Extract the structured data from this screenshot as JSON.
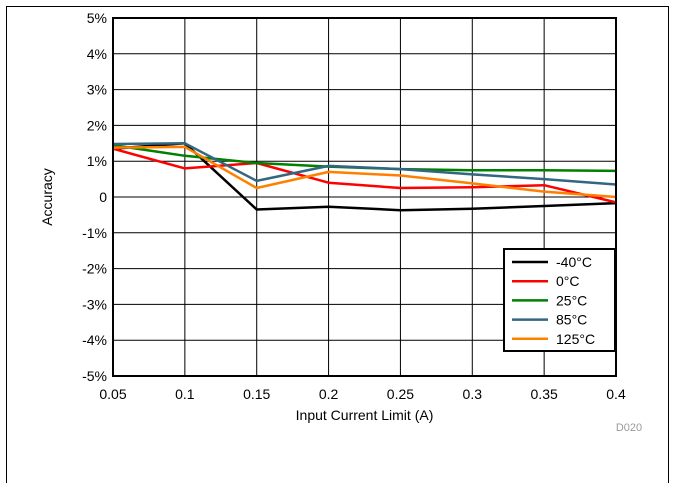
{
  "chart_data": {
    "type": "line",
    "xlabel": "Input Current Limit (A)",
    "ylabel": "Accuracy",
    "xlim": [
      0.05,
      0.4
    ],
    "ylim": [
      -5,
      5
    ],
    "x": [
      0.05,
      0.1,
      0.15,
      0.2,
      0.25,
      0.3,
      0.35,
      0.4
    ],
    "x_tick_labels": [
      "0.05",
      "0.1",
      "0.15",
      "0.2",
      "0.25",
      "0.3",
      "0.35",
      "0.4"
    ],
    "y_ticks": [
      5,
      4,
      3,
      2,
      1,
      0,
      -1,
      -2,
      -3,
      -4,
      -5
    ],
    "y_tick_labels": [
      "5%",
      "4%",
      "3%",
      "2%",
      "1%",
      "0",
      "-1%",
      "-2%",
      "-3%",
      "-4%",
      "-5%"
    ],
    "grid": true,
    "legend_position": "bottom-right",
    "watermark": "D020",
    "series": [
      {
        "name": "-40°C",
        "color": "#000000",
        "values": [
          1.35,
          1.5,
          -0.35,
          -0.27,
          -0.37,
          -0.33,
          -0.25,
          -0.17
        ]
      },
      {
        "name": "0°C",
        "color": "#ff0000",
        "values": [
          1.35,
          0.8,
          0.95,
          0.4,
          0.25,
          0.27,
          0.33,
          -0.15
        ]
      },
      {
        "name": "25°C",
        "color": "#008000",
        "values": [
          1.45,
          1.15,
          0.95,
          0.85,
          0.78,
          0.75,
          0.75,
          0.73
        ]
      },
      {
        "name": "85°C",
        "color": "#336680",
        "values": [
          1.48,
          1.5,
          0.45,
          0.87,
          0.78,
          0.63,
          0.5,
          0.35
        ]
      },
      {
        "name": "125°C",
        "color": "#ff8000",
        "values": [
          1.38,
          1.4,
          0.25,
          0.7,
          0.6,
          0.38,
          0.15,
          0.0
        ]
      }
    ]
  }
}
